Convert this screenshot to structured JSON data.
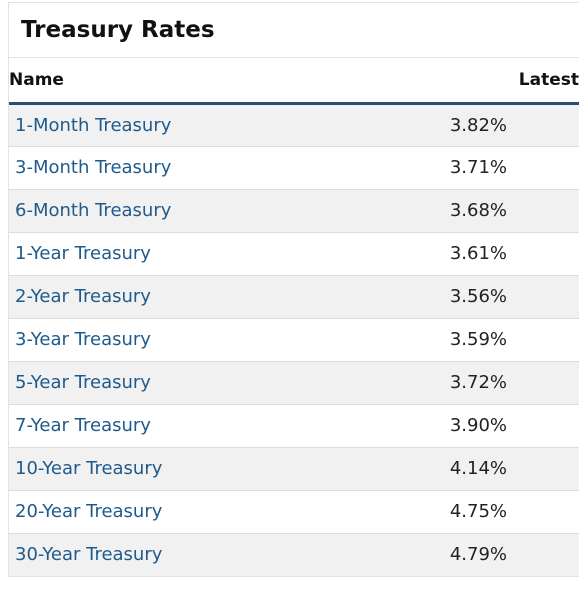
{
  "widget": {
    "title": "Treasury Rates"
  },
  "table": {
    "headers": {
      "name": "Name",
      "latest": "Latest"
    },
    "rows": [
      {
        "name": "1-Month Treasury",
        "latest": "3.82%"
      },
      {
        "name": "3-Month Treasury",
        "latest": "3.71%"
      },
      {
        "name": "6-Month Treasury",
        "latest": "3.68%"
      },
      {
        "name": "1-Year Treasury",
        "latest": "3.61%"
      },
      {
        "name": "2-Year Treasury",
        "latest": "3.56%"
      },
      {
        "name": "3-Year Treasury",
        "latest": "3.59%"
      },
      {
        "name": "5-Year Treasury",
        "latest": "3.72%"
      },
      {
        "name": "7-Year Treasury",
        "latest": "3.90%"
      },
      {
        "name": "10-Year Treasury",
        "latest": "4.14%"
      },
      {
        "name": "20-Year Treasury",
        "latest": "4.75%"
      },
      {
        "name": "30-Year Treasury",
        "latest": "4.79%"
      }
    ]
  },
  "colors": {
    "link": "#1f5a8c",
    "header_rule": "#2a4e73",
    "row_stripe": "#f1f1f1"
  }
}
